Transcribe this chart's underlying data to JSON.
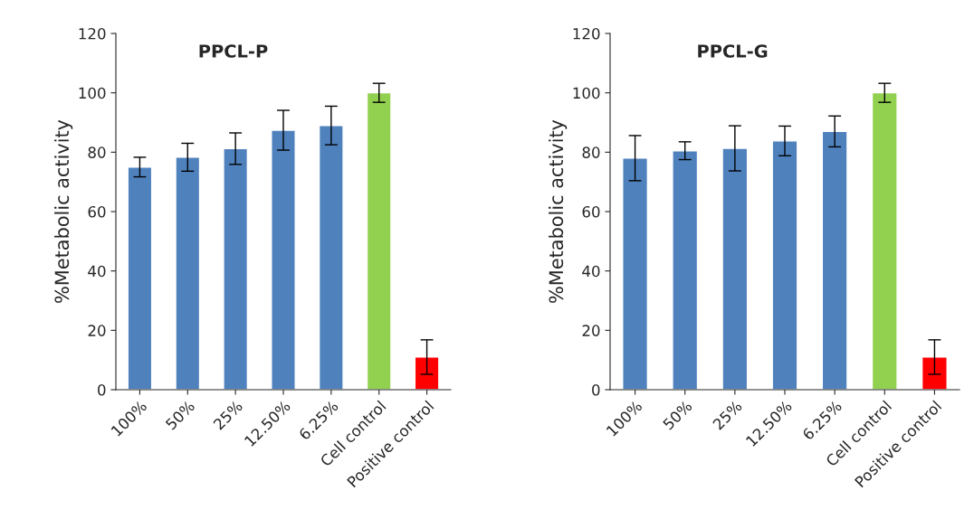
{
  "chart_data": [
    {
      "type": "bar",
      "title": "PPCL-P",
      "ylabel": "%Metabolic activity",
      "categories": [
        "100%",
        "50%",
        "25%",
        "12.50%",
        "6.25%",
        "Cell control",
        "Positive control"
      ],
      "values": [
        75,
        78.3,
        81.2,
        87.4,
        89,
        100,
        11
      ],
      "errors": [
        3.3,
        4.7,
        5.3,
        6.7,
        6.5,
        3.2,
        5.8
      ],
      "colors": [
        "#4f81bd",
        "#4f81bd",
        "#4f81bd",
        "#4f81bd",
        "#4f81bd",
        "#92d050",
        "#ff0000"
      ],
      "ylim": [
        0,
        120
      ],
      "yticks": [
        0,
        20,
        40,
        60,
        80,
        100,
        120
      ]
    },
    {
      "type": "bar",
      "title": "PPCL-G",
      "ylabel": "%Metabolic activity",
      "categories": [
        "100%",
        "50%",
        "25%",
        "12.50%",
        "6.25%",
        "Cell control",
        "Positive control"
      ],
      "values": [
        78,
        80.5,
        81.3,
        83.8,
        87,
        100,
        11
      ],
      "errors": [
        7.6,
        3,
        7.6,
        5,
        5.2,
        3.2,
        5.8
      ],
      "colors": [
        "#4f81bd",
        "#4f81bd",
        "#4f81bd",
        "#4f81bd",
        "#4f81bd",
        "#92d050",
        "#ff0000"
      ],
      "ylim": [
        0,
        120
      ],
      "yticks": [
        0,
        20,
        40,
        60,
        80,
        100,
        120
      ]
    }
  ]
}
